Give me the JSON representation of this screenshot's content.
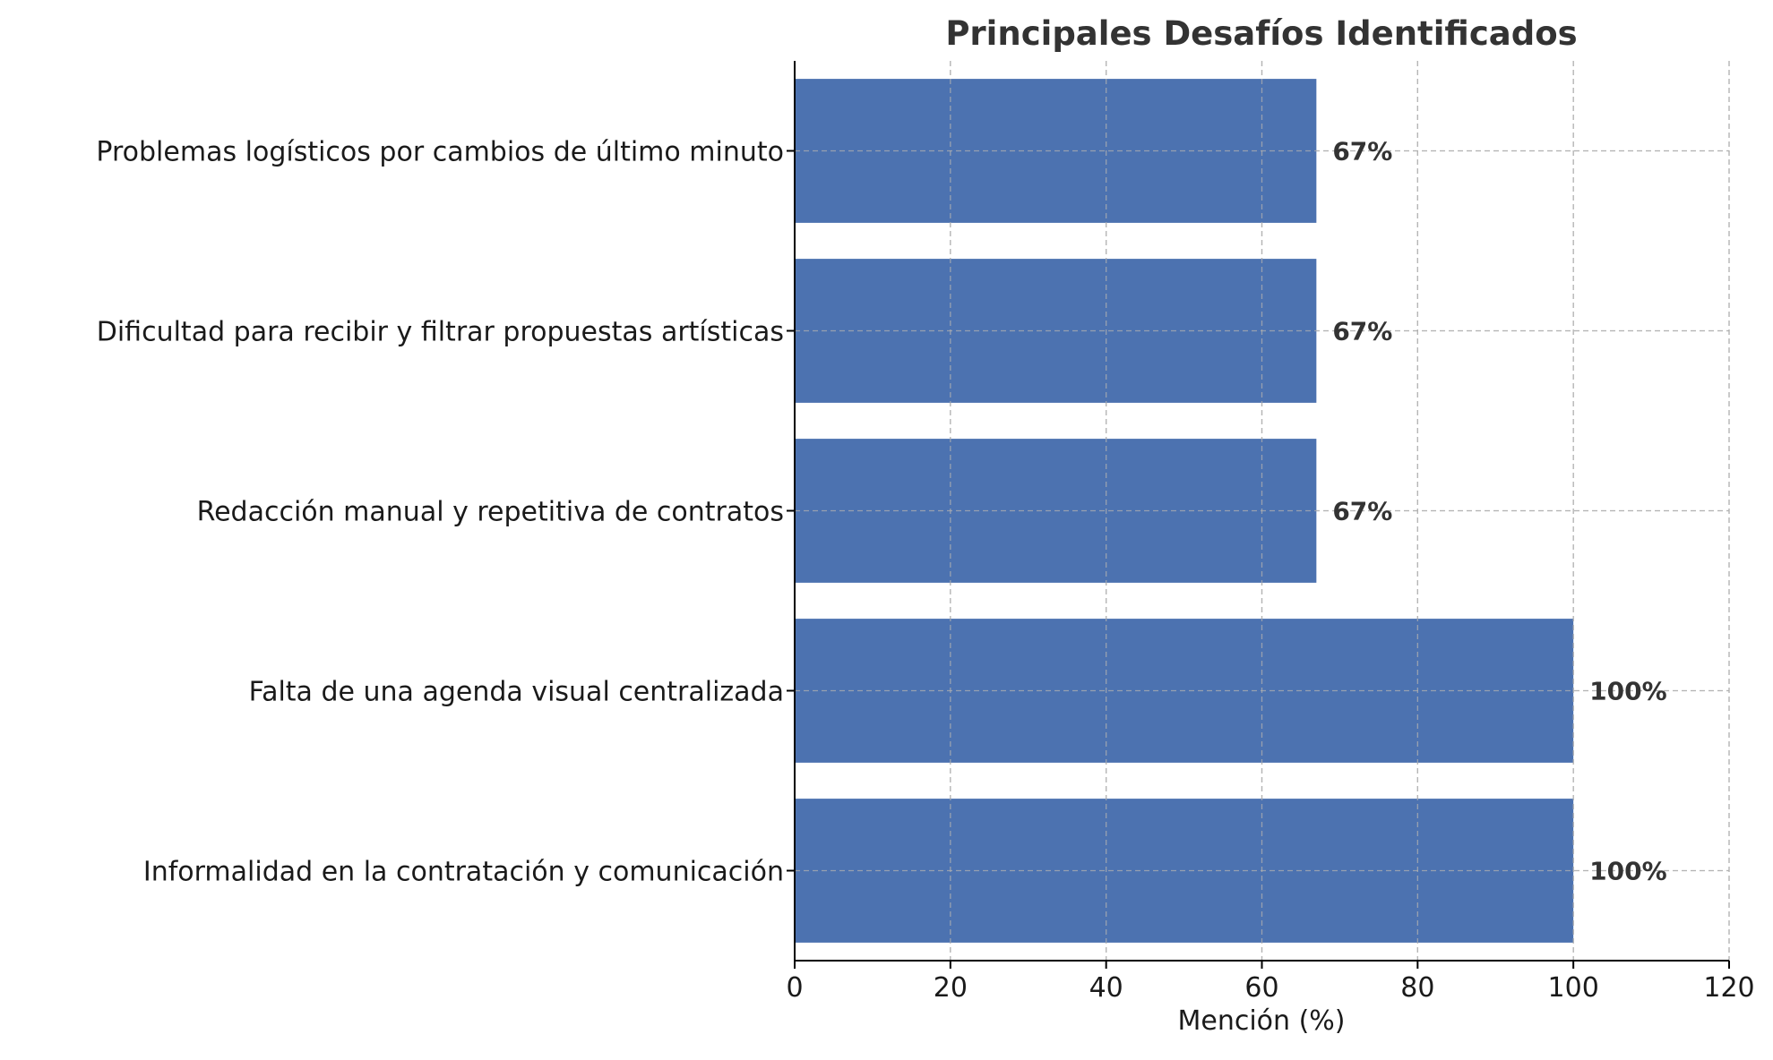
{
  "chart_data": {
    "type": "bar",
    "orientation": "horizontal",
    "title": "Principales Desafíos Identificados",
    "xlabel": "Mención (%)",
    "ylabel": "",
    "xlim": [
      0,
      120
    ],
    "x_ticks": [
      0,
      20,
      40,
      60,
      80,
      100,
      120
    ],
    "grid": true,
    "categories": [
      "Informalidad en la contratación y comunicación",
      "Falta de una agenda visual centralizada",
      "Redacción manual y repetitiva de contratos",
      "Dificultad para recibir y filtrar propuestas artísticas",
      "Problemas logísticos por cambios de último minuto"
    ],
    "values": [
      100,
      100,
      67,
      67,
      67
    ],
    "data_labels": [
      "100%",
      "100%",
      "67%",
      "67%",
      "67%"
    ],
    "bar_color": "#4c72b0"
  }
}
